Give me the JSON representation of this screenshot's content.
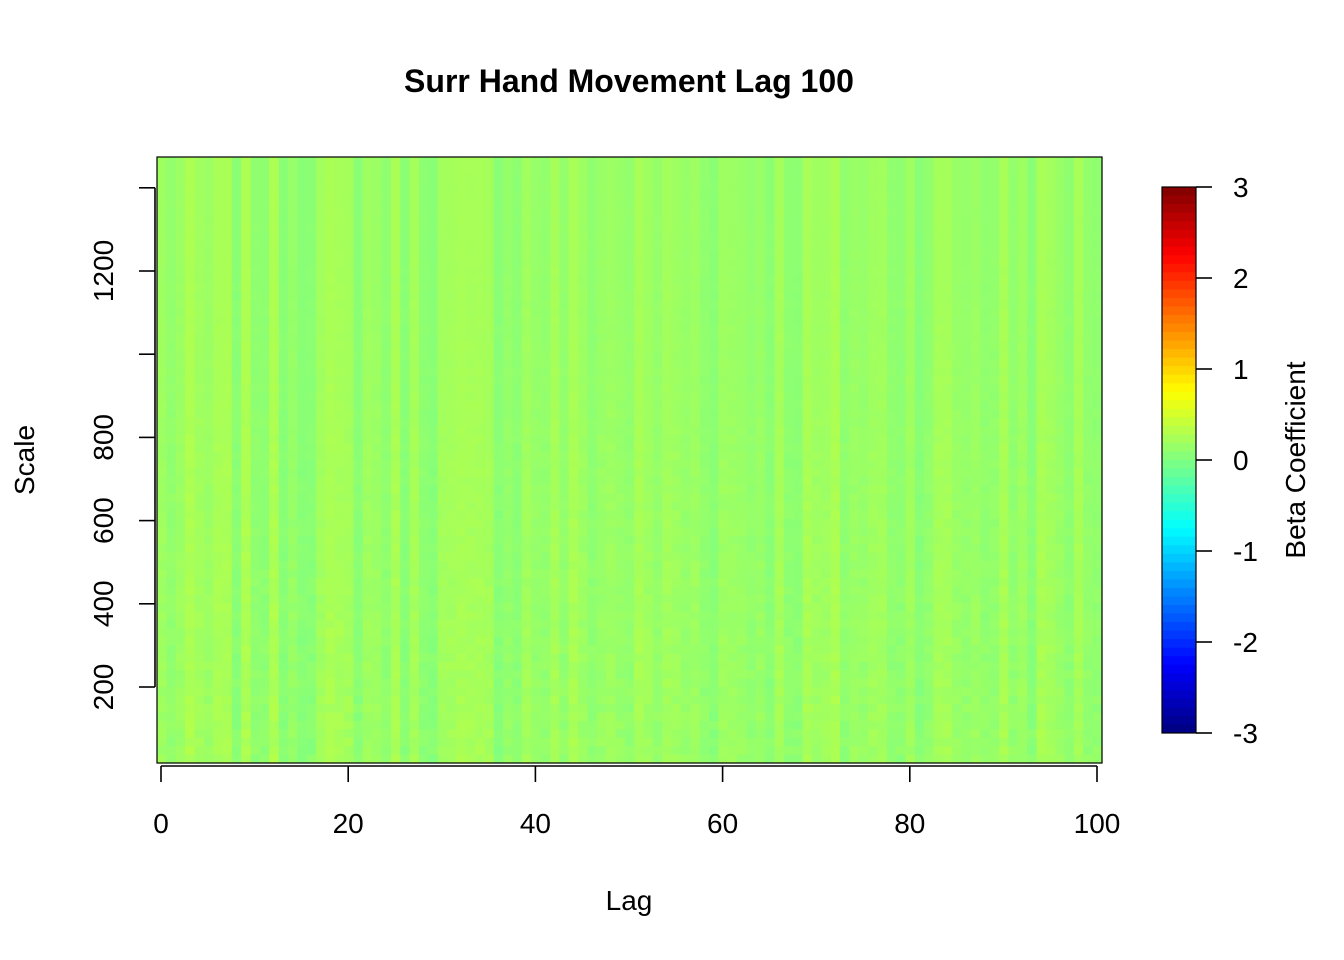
{
  "chart_data": {
    "type": "heatmap",
    "title": "Surr Hand Movement Lag 100",
    "xlabel": "Lag",
    "ylabel": "Scale",
    "xlim": [
      0,
      100
    ],
    "ylim": [
      30,
      1480
    ],
    "x_ticks": [
      0,
      20,
      40,
      60,
      80,
      100
    ],
    "x_tick_labels": [
      "0",
      "20",
      "40",
      "60",
      "80",
      "100"
    ],
    "y_ticks": [
      200,
      400,
      600,
      800,
      1000,
      1200,
      1400
    ],
    "y_tick_labels": [
      "200",
      "400",
      "600",
      "800",
      "",
      "1200",
      ""
    ],
    "colorbar": {
      "label": "Beta Coefficient",
      "range": [
        -3,
        3
      ],
      "ticks": [
        -3,
        -2,
        -1,
        0,
        1,
        2,
        3
      ],
      "tick_labels": [
        "-3",
        "-2",
        "-1",
        "0",
        "1",
        "2",
        "3"
      ],
      "colormap": "jet",
      "colors": [
        "#00007F",
        "#0000FF",
        "#007FFF",
        "#00FFFF",
        "#7FFF7F",
        "#FFFF00",
        "#FF7F00",
        "#FF0000",
        "#7F0000"
      ]
    },
    "n_lag": 101,
    "n_scale": 72,
    "value_range_observed": [
      0.0,
      0.35
    ],
    "grid": false,
    "legend": "right"
  }
}
